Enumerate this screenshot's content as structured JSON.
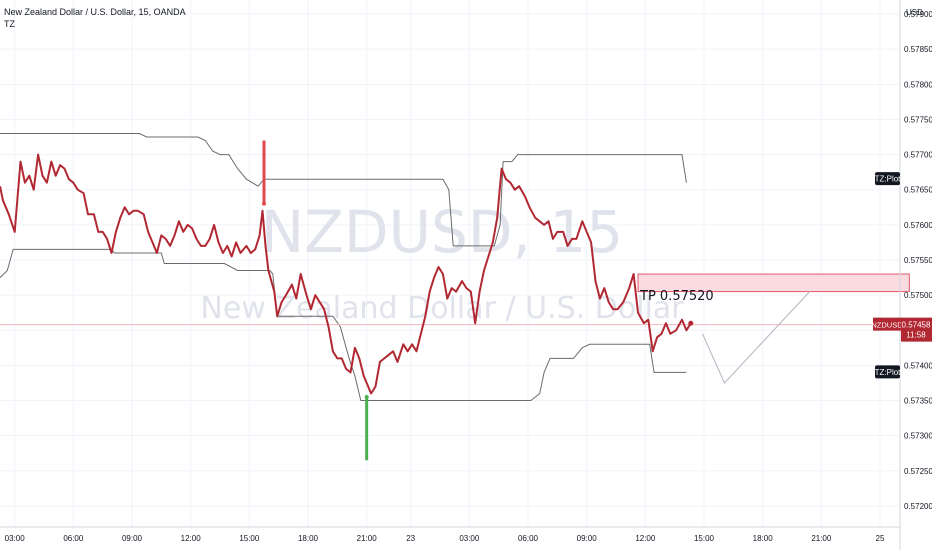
{
  "header": {
    "title": "New Zealand Dollar / U.S. Dollar, 15, OANDA",
    "indicator": "TZ"
  },
  "watermark": {
    "symbol": "NZDUSD, 15",
    "name": "New Zealand Dollar / U.S. Dollar"
  },
  "axis": {
    "currency": "USD"
  },
  "colors": {
    "price": "#b22832",
    "bands": "#6b6b6b",
    "tp_box": "#f9d6da",
    "tp_border": "#e25866",
    "green": "#4caf50",
    "red": "#e0474c",
    "label_bg": "#131722"
  },
  "labels": {
    "tz_plot_upper": "TZ:Plot",
    "tz_plot_lower": "TZ:Plot",
    "symbol": "NZDUSD",
    "last_price": "0.57458",
    "countdown": "11:58",
    "tp": "TP 0.57520"
  },
  "chart_data": {
    "type": "line",
    "title": "New Zealand Dollar / U.S. Dollar, 15, OANDA",
    "ylabel": "USD",
    "ylim": [
      0.5717,
      0.5792
    ],
    "y_ticks": [
      "0.57200",
      "0.57250",
      "0.57300",
      "0.57350",
      "0.57400",
      "0.57450",
      "0.57500",
      "0.57550",
      "0.57600",
      "0.57650",
      "0.57700",
      "0.57750",
      "0.57800",
      "0.57850",
      "0.57900"
    ],
    "x_tick_labels": [
      "03:00",
      "06:00",
      "09:00",
      "12:00",
      "15:00",
      "18:00",
      "21:00",
      "23",
      "03:00",
      "06:00",
      "09:00",
      "12:00",
      "15:00",
      "18:00",
      "21:00",
      "25"
    ],
    "x_unit": "bar index (15-minute bars)",
    "xlim": [
      0,
      120
    ],
    "tick_bar": [
      1,
      5,
      9,
      13,
      17,
      21,
      25,
      28,
      32,
      36,
      40,
      44,
      48,
      52,
      56,
      60
    ],
    "series": [
      {
        "name": "NZDUSD",
        "values": [
          [
            0,
            0.57655
          ],
          [
            0.2,
            0.57635
          ],
          [
            0.6,
            0.57615
          ],
          [
            1,
            0.5759
          ],
          [
            1.4,
            0.5769
          ],
          [
            1.7,
            0.5766
          ],
          [
            2,
            0.5767
          ],
          [
            2.3,
            0.5765
          ],
          [
            2.6,
            0.577
          ],
          [
            2.9,
            0.5767
          ],
          [
            3.2,
            0.5766
          ],
          [
            3.5,
            0.5769
          ],
          [
            3.8,
            0.5767
          ],
          [
            4.1,
            0.57685
          ],
          [
            4.4,
            0.5768
          ],
          [
            4.7,
            0.57665
          ],
          [
            5,
            0.5766
          ],
          [
            5.3,
            0.5765
          ],
          [
            5.7,
            0.57645
          ],
          [
            6,
            0.57615
          ],
          [
            6.4,
            0.57615
          ],
          [
            6.7,
            0.5759
          ],
          [
            7,
            0.5759
          ],
          [
            7.3,
            0.5758
          ],
          [
            7.6,
            0.5756
          ],
          [
            7.9,
            0.5759
          ],
          [
            8.2,
            0.5761
          ],
          [
            8.5,
            0.57625
          ],
          [
            8.8,
            0.57615
          ],
          [
            9.1,
            0.5762
          ],
          [
            9.4,
            0.5762
          ],
          [
            9.8,
            0.57615
          ],
          [
            10.1,
            0.5759
          ],
          [
            10.4,
            0.57575
          ],
          [
            10.7,
            0.5756
          ],
          [
            11,
            0.57585
          ],
          [
            11.3,
            0.5758
          ],
          [
            11.6,
            0.5757
          ],
          [
            11.9,
            0.57585
          ],
          [
            12.2,
            0.57605
          ],
          [
            12.5,
            0.5759
          ],
          [
            12.8,
            0.576
          ],
          [
            13.1,
            0.57595
          ],
          [
            13.4,
            0.5758
          ],
          [
            13.7,
            0.5757
          ],
          [
            14,
            0.5757
          ],
          [
            14.3,
            0.5758
          ],
          [
            14.6,
            0.576
          ],
          [
            14.9,
            0.57575
          ],
          [
            15.2,
            0.5756
          ],
          [
            15.5,
            0.5757
          ],
          [
            15.8,
            0.57555
          ],
          [
            16.1,
            0.57575
          ],
          [
            16.4,
            0.5756
          ],
          [
            16.8,
            0.5757
          ],
          [
            17.1,
            0.5756
          ],
          [
            17.4,
            0.57565
          ],
          [
            17.7,
            0.57585
          ],
          [
            17.9,
            0.5762
          ],
          [
            18.1,
            0.5757
          ],
          [
            18.3,
            0.57535
          ],
          [
            18.7,
            0.57505
          ],
          [
            18.9,
            0.5747
          ],
          [
            19.2,
            0.5749
          ],
          [
            19.5,
            0.575
          ],
          [
            19.9,
            0.57515
          ],
          [
            20.2,
            0.57495
          ],
          [
            20.5,
            0.5753
          ],
          [
            20.9,
            0.575
          ],
          [
            21.2,
            0.5748
          ],
          [
            21.5,
            0.575
          ],
          [
            21.8,
            0.5749
          ],
          [
            22.1,
            0.5748
          ],
          [
            22.4,
            0.57455
          ],
          [
            22.7,
            0.5742
          ],
          [
            23,
            0.5741
          ],
          [
            23.3,
            0.5741
          ],
          [
            23.6,
            0.57395
          ],
          [
            23.9,
            0.5739
          ],
          [
            24.2,
            0.57425
          ],
          [
            24.5,
            0.5741
          ],
          [
            24.8,
            0.57385
          ],
          [
            25,
            0.57375
          ],
          [
            25.3,
            0.5736
          ],
          [
            25.6,
            0.5737
          ],
          [
            25.9,
            0.57405
          ],
          [
            26.2,
            0.5741
          ],
          [
            26.5,
            0.57415
          ],
          [
            26.8,
            0.5742
          ],
          [
            27.1,
            0.57405
          ],
          [
            27.5,
            0.5743
          ],
          [
            27.8,
            0.5742
          ],
          [
            28.1,
            0.5743
          ],
          [
            28.4,
            0.5742
          ],
          [
            28.7,
            0.57445
          ],
          [
            29,
            0.5747
          ],
          [
            29.3,
            0.57505
          ],
          [
            29.6,
            0.57525
          ],
          [
            29.9,
            0.5754
          ],
          [
            30.2,
            0.5753
          ],
          [
            30.5,
            0.57495
          ],
          [
            30.8,
            0.5751
          ],
          [
            31.1,
            0.57505
          ],
          [
            31.5,
            0.5752
          ],
          [
            31.8,
            0.5751
          ],
          [
            32.1,
            0.57505
          ],
          [
            32.4,
            0.5746
          ],
          [
            32.7,
            0.57505
          ],
          [
            33,
            0.57535
          ],
          [
            33.3,
            0.57555
          ],
          [
            33.6,
            0.57575
          ],
          [
            33.9,
            0.5761
          ],
          [
            34.2,
            0.5768
          ],
          [
            34.5,
            0.57665
          ],
          [
            34.8,
            0.5766
          ],
          [
            35.1,
            0.5765
          ],
          [
            35.4,
            0.57655
          ],
          [
            35.8,
            0.5764
          ],
          [
            36.1,
            0.57625
          ],
          [
            36.5,
            0.5761
          ],
          [
            36.8,
            0.57605
          ],
          [
            37.1,
            0.576
          ],
          [
            37.4,
            0.57605
          ],
          [
            37.7,
            0.5758
          ],
          [
            38,
            0.5759
          ],
          [
            38.4,
            0.5759
          ],
          [
            38.7,
            0.5757
          ],
          [
            39,
            0.5758
          ],
          [
            39.3,
            0.5758
          ],
          [
            39.7,
            0.57605
          ],
          [
            40,
            0.5759
          ],
          [
            40.3,
            0.57575
          ],
          [
            40.6,
            0.5752
          ],
          [
            40.9,
            0.57495
          ],
          [
            41.2,
            0.5751
          ],
          [
            41.5,
            0.5749
          ],
          [
            41.8,
            0.5748
          ],
          [
            42.1,
            0.5748
          ],
          [
            42.5,
            0.5749
          ],
          [
            42.9,
            0.5751
          ],
          [
            43.2,
            0.5753
          ],
          [
            43.5,
            0.57475
          ],
          [
            43.9,
            0.5746
          ],
          [
            44.2,
            0.57465
          ],
          [
            44.5,
            0.5742
          ],
          [
            44.8,
            0.5744
          ],
          [
            45.1,
            0.57445
          ],
          [
            45.4,
            0.5746
          ],
          [
            45.7,
            0.57445
          ],
          [
            46.1,
            0.5745
          ],
          [
            46.5,
            0.57465
          ],
          [
            46.8,
            0.5745
          ],
          [
            47.1,
            0.5746
          ]
        ]
      }
    ],
    "upper_band": [
      [
        0,
        0.5773
      ],
      [
        9.5,
        0.5773
      ],
      [
        10,
        0.57725
      ],
      [
        13.5,
        0.57725
      ],
      [
        14,
        0.5772
      ],
      [
        14.5,
        0.57705
      ],
      [
        15,
        0.577
      ],
      [
        15.6,
        0.577
      ],
      [
        16.2,
        0.5768
      ],
      [
        16.8,
        0.57665
      ],
      [
        17.2,
        0.5766
      ],
      [
        17.6,
        0.57655
      ],
      [
        18,
        0.57665
      ],
      [
        18.1,
        0.57665
      ],
      [
        30.2,
        0.57665
      ],
      [
        30.6,
        0.5765
      ],
      [
        30.9,
        0.5757
      ],
      [
        33.7,
        0.5757
      ],
      [
        34.1,
        0.576
      ],
      [
        34.3,
        0.5769
      ],
      [
        34.9,
        0.5769
      ],
      [
        35.3,
        0.577
      ],
      [
        46.5,
        0.577
      ],
      [
        46.8,
        0.5766
      ]
    ],
    "lower_band": [
      [
        0,
        0.57525
      ],
      [
        0.5,
        0.57535
      ],
      [
        0.9,
        0.57565
      ],
      [
        6,
        0.57565
      ],
      [
        7.6,
        0.57565
      ],
      [
        7.8,
        0.5756
      ],
      [
        11,
        0.5756
      ],
      [
        11.2,
        0.57545
      ],
      [
        15.3,
        0.57545
      ],
      [
        16.2,
        0.57535
      ],
      [
        18.4,
        0.57535
      ],
      [
        18.6,
        0.5753
      ],
      [
        18.9,
        0.5747
      ],
      [
        22.7,
        0.5747
      ],
      [
        23.2,
        0.57455
      ],
      [
        23.8,
        0.5741
      ],
      [
        24.2,
        0.57385
      ],
      [
        24.6,
        0.5735
      ],
      [
        36.2,
        0.5735
      ],
      [
        36.8,
        0.5736
      ],
      [
        37.1,
        0.5739
      ],
      [
        37.5,
        0.5741
      ],
      [
        39.1,
        0.5741
      ],
      [
        39.7,
        0.57425
      ],
      [
        40.2,
        0.5743
      ],
      [
        44.3,
        0.5743
      ],
      [
        44.6,
        0.5739
      ],
      [
        46.8,
        0.5739
      ]
    ],
    "markers": [
      {
        "kind": "sell-signal",
        "x": 18,
        "y_top": 0.5772,
        "y_bottom": 0.5763
      },
      {
        "kind": "buy-signal",
        "x": 25,
        "y_top": 0.57355,
        "y_bottom": 0.57265
      }
    ],
    "tp_zone": {
      "label": "TP 0.57520",
      "x_start": 43.5,
      "x_end": 62,
      "y_low": 0.57505,
      "y_high": 0.5753
    },
    "projection": [
      [
        47.9,
        0.57445
      ],
      [
        49.4,
        0.57375
      ],
      [
        55.2,
        0.57505
      ]
    ],
    "last_price": 0.57458,
    "price_line": 0.57458
  }
}
